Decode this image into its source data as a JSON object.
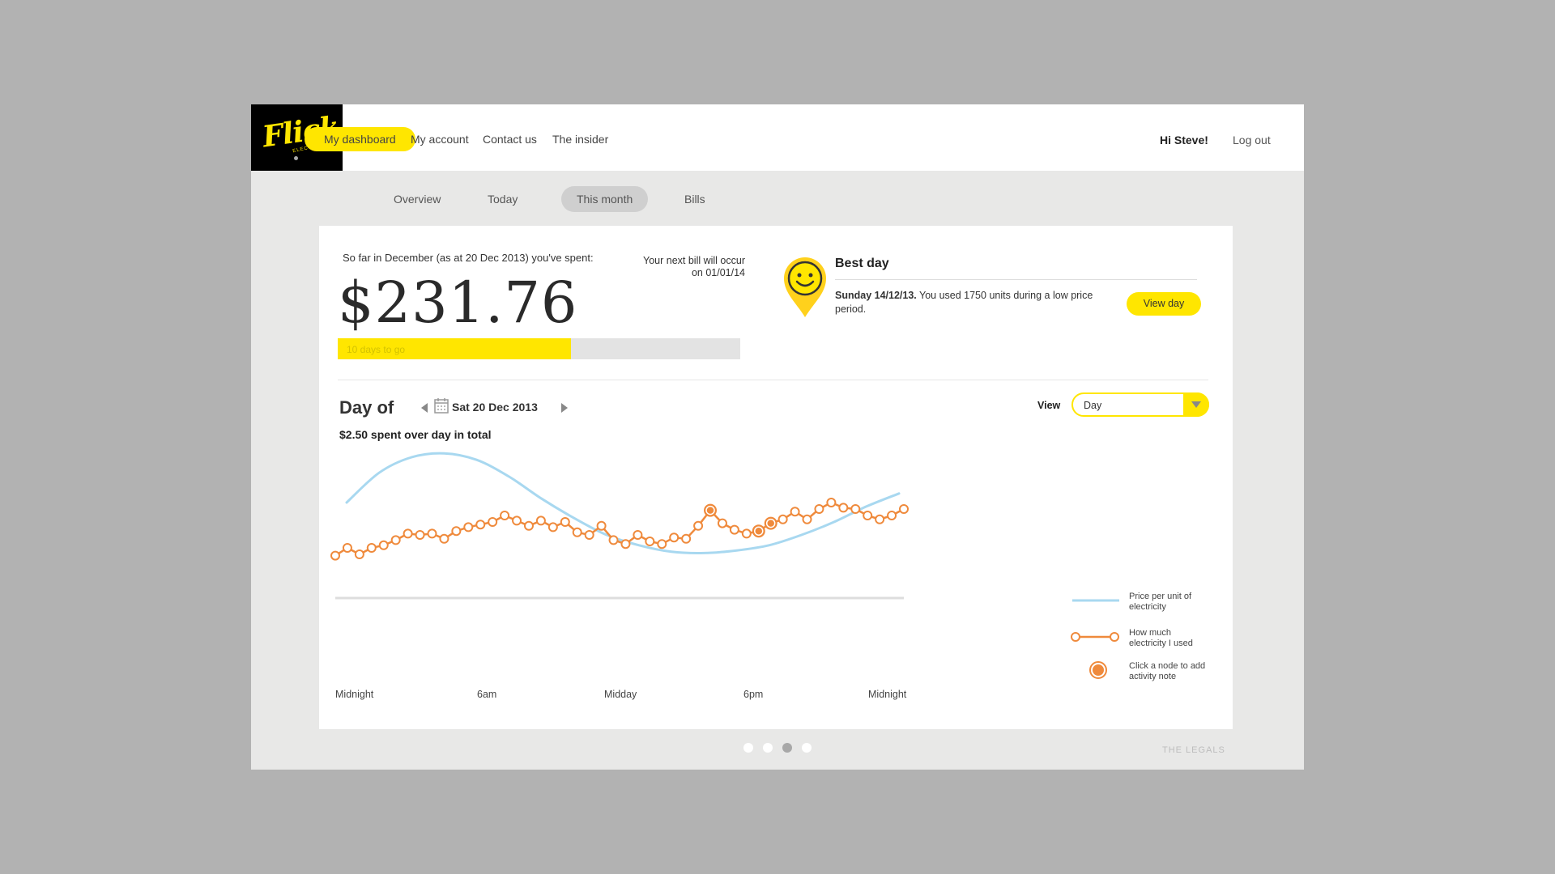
{
  "header": {
    "logo_text": "Flick",
    "logo_sub": "ELECTRIC CO",
    "nav": [
      {
        "label": "My dashboard"
      },
      {
        "label": "My account"
      },
      {
        "label": "Contact us"
      },
      {
        "label": "The insider"
      }
    ],
    "greeting": "Hi Steve!",
    "logout": "Log out"
  },
  "subnav": [
    {
      "label": "Overview"
    },
    {
      "label": "Today"
    },
    {
      "label": "This month"
    },
    {
      "label": "Bills"
    }
  ],
  "summary": {
    "spent_label": "So far in December (as at 20 Dec 2013) you've spent:",
    "amount": "$231.76",
    "next_bill": "Your next bill will occur on 01/01/14",
    "progress_text": "10 days to go",
    "progress_fraction": 0.58
  },
  "best_day": {
    "title": "Best day",
    "date": "Sunday 14/12/13.",
    "text": " You used 1750 units during a low price period.",
    "button": "View day"
  },
  "day": {
    "title": "Day of",
    "date": "Sat 20 Dec 2013",
    "spent": "$2.50 spent over day in total",
    "view_label": "View",
    "view_value": "Day"
  },
  "chart_data": {
    "type": "line",
    "x_labels": [
      "Midnight",
      "6am",
      "Midday",
      "6pm",
      "Midnight"
    ],
    "series": [
      {
        "name": "Price per unit of electricity",
        "color": "#a8d8f0",
        "values": [
          0.55,
          0.78,
          0.9,
          0.93,
          0.88,
          0.75,
          0.58,
          0.43,
          0.3,
          0.22,
          0.17,
          0.16,
          0.18,
          0.22,
          0.3,
          0.4,
          0.52,
          0.62
        ]
      },
      {
        "name": "How much electricity I used",
        "color": "#ef8a3c",
        "values": [
          0.14,
          0.2,
          0.15,
          0.2,
          0.22,
          0.26,
          0.31,
          0.3,
          0.31,
          0.27,
          0.33,
          0.36,
          0.38,
          0.4,
          0.45,
          0.41,
          0.37,
          0.41,
          0.36,
          0.4,
          0.32,
          0.3,
          0.37,
          0.26,
          0.23,
          0.3,
          0.25,
          0.23,
          0.28,
          0.27,
          0.37,
          0.49,
          0.39,
          0.34,
          0.31,
          0.33,
          0.39,
          0.42,
          0.48,
          0.42,
          0.5,
          0.55,
          0.51,
          0.5,
          0.45,
          0.42,
          0.45,
          0.5
        ],
        "highlighted": [
          31,
          35,
          36
        ]
      }
    ],
    "legend": [
      {
        "label": "Price per unit of electricity"
      },
      {
        "label": "How much electricity I used"
      },
      {
        "label": "Click a node to add activity note"
      }
    ]
  },
  "pagination": {
    "count": 4,
    "active": 2
  },
  "footer": {
    "legals": "THE LEGALS"
  }
}
